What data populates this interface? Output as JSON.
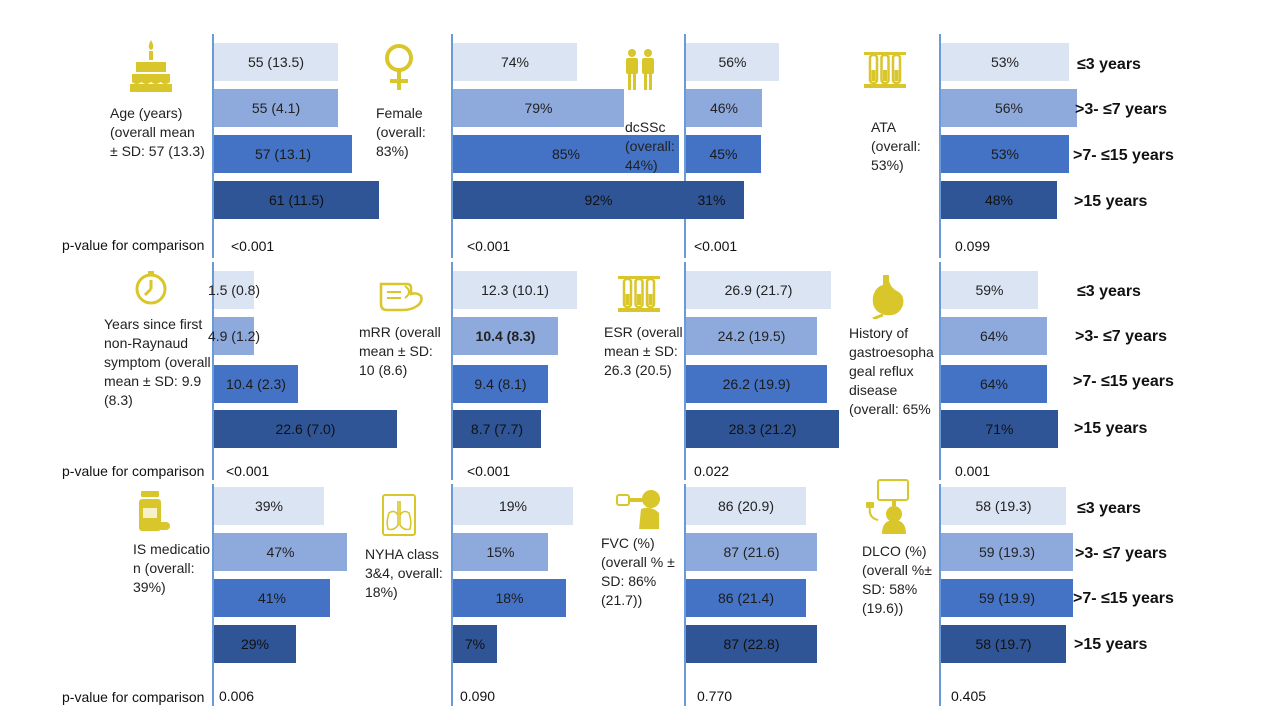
{
  "colors": {
    "bar_levels": [
      "#dbe4f3",
      "#8eaadc",
      "#4472c4",
      "#2f5597"
    ],
    "icon": "#d9c62b",
    "divider": "#6a9bd8"
  },
  "chart_data": {
    "type": "bar",
    "orientation": "horizontal",
    "categories": [
      "≤3 years",
      ">3- ≤7 years",
      ">7- ≤15 years",
      ">15 years"
    ],
    "pvalue_label": "p-value for comparison",
    "panels": [
      {
        "label": "Age (years) (overall mean ± SD: 57 (13.3)",
        "icon": "birthday-cake-icon",
        "values": [
          55,
          55,
          57,
          61
        ],
        "bar_labels": [
          "55 (13.5)",
          "55 (4.1)",
          "57 (13.1)",
          "61 (11.5)"
        ],
        "pvalue": "<0.001"
      },
      {
        "label": "Female (overall: 83%)",
        "icon": "female-symbol-icon",
        "values": [
          74,
          79,
          85,
          92
        ],
        "bar_labels": [
          "74%",
          "79%",
          "85%",
          "92%"
        ],
        "pvalue": "<0.001"
      },
      {
        "label": "dcSSc (overall: 44%)",
        "icon": "body-figures-icon",
        "values": [
          56,
          46,
          45,
          31
        ],
        "bar_labels": [
          "56%",
          "46%",
          "45%",
          "31%"
        ],
        "pvalue": "<0.001"
      },
      {
        "label": "ATA (overall: 53%)",
        "icon": "test-tubes-icon",
        "values": [
          53,
          56,
          53,
          48
        ],
        "bar_labels": [
          "53%",
          "56%",
          "53%",
          "48%"
        ],
        "pvalue": "0.099"
      },
      {
        "label": "Years since first non-Raynaud symptom (overall mean ± SD: 9.9 (8.3)",
        "icon": "stopwatch-icon",
        "values": [
          1.5,
          4.9,
          10.4,
          22.6
        ],
        "bar_labels": [
          "1.5 (0.8)",
          "4.9 (1.2)",
          "10.4 (2.3)",
          "22.6 (7.0)"
        ],
        "pvalue": "<0.001"
      },
      {
        "label": "mRR (overall mean ± SD: 10 (8.6)",
        "icon": "skin-hand-icon",
        "values": [
          12.3,
          10.4,
          9.4,
          8.7
        ],
        "bar_labels": [
          "12.3 (10.1)",
          "10.4 (8.3)",
          "9.4 (8.1)",
          "8.7 (7.7)"
        ],
        "bold_index": 1,
        "pvalue": "<0.001"
      },
      {
        "label": "ESR (overall mean ± SD: 26.3 (20.5)",
        "icon": "test-tubes-icon",
        "values": [
          26.9,
          24.2,
          26.2,
          28.3
        ],
        "bar_labels": [
          "26.9 (21.7)",
          "24.2 (19.5)",
          "26.2 (19.9)",
          "28.3 (21.2)"
        ],
        "pvalue": "0.022"
      },
      {
        "label": "History of gastroesopha geal reflux disease (overall: 65%",
        "icon": "stomach-icon",
        "values": [
          59,
          64,
          64,
          71
        ],
        "bar_labels": [
          "59%",
          "64%",
          "64%",
          "71%"
        ],
        "pvalue": "0.001"
      },
      {
        "label": "IS medicatio n (overall: 39%)",
        "icon": "medication-bottle-icon",
        "values": [
          39,
          47,
          41,
          29
        ],
        "bar_labels": [
          "39%",
          "47%",
          "41%",
          "29%"
        ],
        "pvalue": "0.006"
      },
      {
        "label": "NYHA class 3&4, overall: 18%)",
        "icon": "lungs-xray-icon",
        "values": [
          19,
          15,
          18,
          7
        ],
        "bar_labels": [
          "19%",
          "15%",
          "18%",
          "7%"
        ],
        "pvalue": "0.090"
      },
      {
        "label": "FVC (%) (overall % ± SD: 86% (21.7))",
        "icon": "spirometry-icon",
        "values": [
          86,
          87,
          86,
          87
        ],
        "bar_labels": [
          "86 (20.9)",
          "87 (21.6)",
          "86 (21.4)",
          "87 (22.8)"
        ],
        "pvalue": "0.770"
      },
      {
        "label": "DLCO (%) (overall %± SD: 58% (19.6))",
        "icon": "dlco-monitor-icon",
        "values": [
          58,
          59,
          59,
          58
        ],
        "bar_labels": [
          "58 (19.3)",
          "59 (19.3)",
          "59 (19.9)",
          "58 (19.7)"
        ],
        "pvalue": "0.405"
      }
    ]
  }
}
